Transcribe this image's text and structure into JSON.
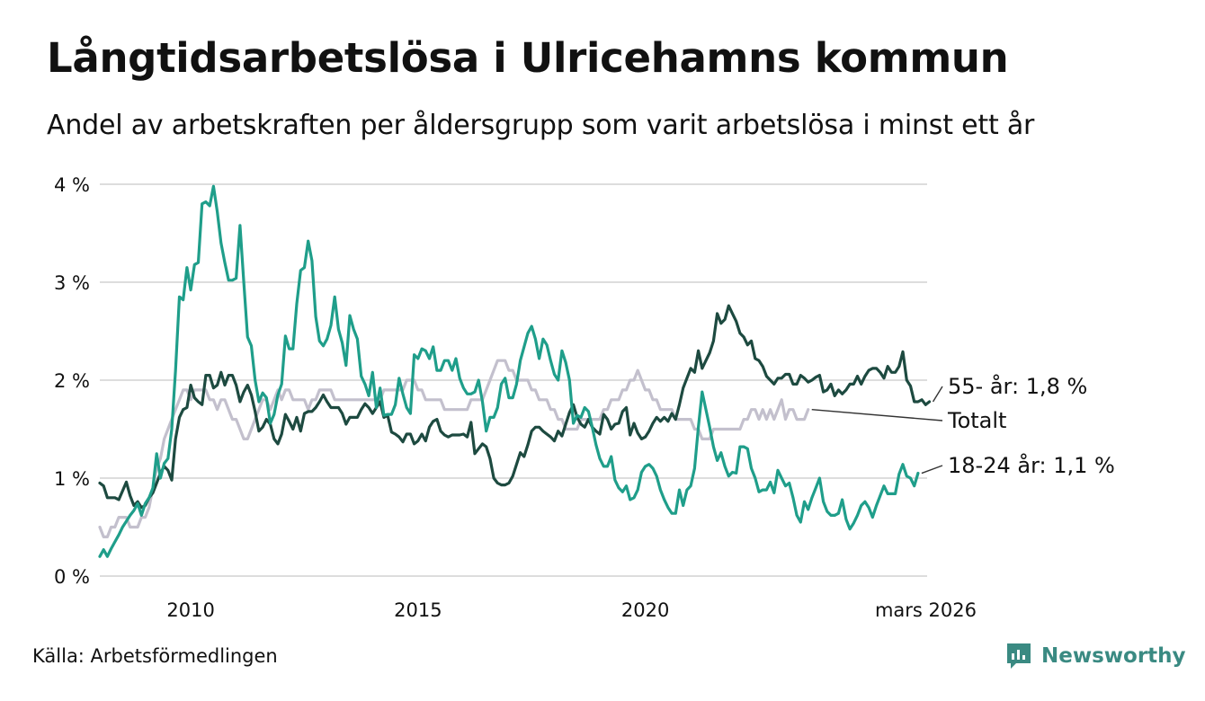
{
  "header": {
    "title": "Långtidsarbetslösa i Ulricehamns kommun",
    "subtitle": "Andel av arbetskraften per åldersgrupp som varit arbetslösa i minst ett år"
  },
  "footer": {
    "source": "Källa: Arbetsförmedlingen",
    "brand": "Newsworthy"
  },
  "colors": {
    "young": "#1f9e8a",
    "old": "#1d4a40",
    "total": "#c3c0cd",
    "grid": "#dddddd",
    "brand": "#3a8a82"
  },
  "chart_data": {
    "type": "line",
    "title": "Långtidsarbetslösa i Ulricehamns kommun",
    "xlabel": "",
    "ylabel": "",
    "x_start": 2008.0,
    "x_step": 0.0833333,
    "xlim": [
      2008.0,
      2026.2
    ],
    "ylim": [
      0,
      4
    ],
    "y_ticks": [
      0,
      1,
      2,
      3,
      4
    ],
    "y_tick_labels": [
      "0 %",
      "1 %",
      "2 %",
      "3 %",
      "4 %"
    ],
    "x_ticks": [
      2010,
      2015,
      2020,
      2026.17
    ],
    "x_tick_labels": [
      "2010",
      "2015",
      "2020",
      "mars 2026"
    ],
    "grid": true,
    "series": [
      {
        "name": "Totalt",
        "key": "total",
        "end_label": "Totalt",
        "values": [
          0.5,
          0.4,
          0.4,
          0.5,
          0.5,
          0.6,
          0.6,
          0.6,
          0.5,
          0.5,
          0.5,
          0.6,
          0.6,
          0.7,
          0.9,
          1.1,
          1.2,
          1.4,
          1.5,
          1.6,
          1.7,
          1.8,
          1.9,
          1.9,
          1.8,
          1.9,
          1.9,
          1.9,
          1.9,
          1.8,
          1.8,
          1.7,
          1.8,
          1.8,
          1.7,
          1.6,
          1.6,
          1.5,
          1.4,
          1.4,
          1.5,
          1.6,
          1.7,
          1.8,
          1.8,
          1.7,
          1.8,
          1.9,
          1.8,
          1.9,
          1.9,
          1.8,
          1.8,
          1.8,
          1.8,
          1.7,
          1.8,
          1.8,
          1.9,
          1.9,
          1.9,
          1.9,
          1.8,
          1.8,
          1.8,
          1.8,
          1.8,
          1.8,
          1.8,
          1.8,
          1.8,
          1.8,
          1.8,
          1.8,
          1.8,
          1.9,
          1.9,
          1.9,
          1.9,
          1.9,
          1.9,
          2.0,
          2.0,
          2.0,
          1.9,
          1.9,
          1.8,
          1.8,
          1.8,
          1.8,
          1.8,
          1.7,
          1.7,
          1.7,
          1.7,
          1.7,
          1.7,
          1.7,
          1.8,
          1.8,
          1.8,
          1.8,
          1.9,
          2.0,
          2.1,
          2.2,
          2.2,
          2.2,
          2.1,
          2.1,
          2.0,
          2.0,
          2.0,
          2.0,
          1.9,
          1.9,
          1.8,
          1.8,
          1.8,
          1.7,
          1.7,
          1.6,
          1.6,
          1.5,
          1.5,
          1.5,
          1.5,
          1.6,
          1.6,
          1.6,
          1.6,
          1.6,
          1.6,
          1.7,
          1.7,
          1.8,
          1.8,
          1.8,
          1.9,
          1.9,
          2.0,
          2.0,
          2.1,
          2.0,
          1.9,
          1.9,
          1.8,
          1.8,
          1.7,
          1.7,
          1.7,
          1.7,
          1.6,
          1.6,
          1.6,
          1.6,
          1.6,
          1.5,
          1.5,
          1.4,
          1.4,
          1.4,
          1.5,
          1.5,
          1.5,
          1.5,
          1.5,
          1.5,
          1.5,
          1.5,
          1.6,
          1.6,
          1.7,
          1.7,
          1.6,
          1.7,
          1.6,
          1.7,
          1.6,
          1.7,
          1.8,
          1.6,
          1.7,
          1.7,
          1.6,
          1.6,
          1.6,
          1.7
        ]
      },
      {
        "name": "55- år",
        "key": "old",
        "end_label": "55- år: 1,8 %",
        "values": [
          0.95,
          0.92,
          0.8,
          0.8,
          0.8,
          0.78,
          0.87,
          0.96,
          0.82,
          0.72,
          0.76,
          0.7,
          0.72,
          0.8,
          0.85,
          0.95,
          1.05,
          1.12,
          1.08,
          0.98,
          1.4,
          1.62,
          1.7,
          1.72,
          1.95,
          1.82,
          1.78,
          1.75,
          2.05,
          2.05,
          1.92,
          1.95,
          2.08,
          1.95,
          2.05,
          2.05,
          1.95,
          1.78,
          1.88,
          1.95,
          1.85,
          1.68,
          1.48,
          1.52,
          1.6,
          1.55,
          1.4,
          1.35,
          1.45,
          1.65,
          1.58,
          1.5,
          1.62,
          1.48,
          1.66,
          1.68,
          1.68,
          1.72,
          1.78,
          1.85,
          1.78,
          1.72,
          1.72,
          1.72,
          1.66,
          1.55,
          1.62,
          1.62,
          1.62,
          1.7,
          1.76,
          1.72,
          1.66,
          1.72,
          1.78,
          1.62,
          1.64,
          1.47,
          1.45,
          1.42,
          1.37,
          1.45,
          1.45,
          1.35,
          1.38,
          1.45,
          1.38,
          1.52,
          1.58,
          1.6,
          1.48,
          1.44,
          1.42,
          1.44,
          1.44,
          1.44,
          1.45,
          1.42,
          1.57,
          1.25,
          1.3,
          1.35,
          1.32,
          1.2,
          1.0,
          0.95,
          0.93,
          0.93,
          0.95,
          1.02,
          1.14,
          1.26,
          1.22,
          1.34,
          1.48,
          1.52,
          1.52,
          1.48,
          1.45,
          1.42,
          1.38,
          1.48,
          1.43,
          1.55,
          1.67,
          1.75,
          1.62,
          1.55,
          1.52,
          1.6,
          1.52,
          1.48,
          1.45,
          1.65,
          1.6,
          1.5,
          1.55,
          1.56,
          1.68,
          1.72,
          1.44,
          1.56,
          1.46,
          1.4,
          1.42,
          1.48,
          1.56,
          1.62,
          1.58,
          1.62,
          1.58,
          1.66,
          1.6,
          1.75,
          1.92,
          2.02,
          2.12,
          2.08,
          2.3,
          2.12,
          2.2,
          2.28,
          2.4,
          2.68,
          2.58,
          2.62,
          2.76,
          2.68,
          2.6,
          2.48,
          2.44,
          2.36,
          2.4,
          2.22,
          2.2,
          2.14,
          2.04,
          2.0,
          1.96,
          2.02,
          2.02,
          2.06,
          2.06,
          1.96,
          1.96,
          2.05,
          2.02,
          1.98,
          2.0,
          2.03,
          2.05,
          1.88,
          1.9,
          1.96,
          1.84,
          1.9,
          1.86,
          1.9,
          1.96,
          1.96,
          2.04,
          1.96,
          2.04,
          2.1,
          2.12,
          2.12,
          2.08,
          2.02,
          2.14,
          2.08,
          2.08,
          2.14,
          2.29,
          2.0,
          1.94,
          1.78,
          1.78,
          1.8,
          1.75,
          1.78
        ]
      },
      {
        "name": "18-24 år",
        "key": "young",
        "end_label": "18-24 år: 1,1 %",
        "values": [
          0.2,
          0.27,
          0.2,
          0.28,
          0.35,
          0.42,
          0.5,
          0.56,
          0.62,
          0.67,
          0.74,
          0.62,
          0.74,
          0.8,
          0.9,
          1.25,
          1.0,
          1.15,
          1.2,
          1.5,
          2.1,
          2.85,
          2.82,
          3.15,
          2.92,
          3.18,
          3.2,
          3.8,
          3.82,
          3.78,
          3.98,
          3.72,
          3.4,
          3.2,
          3.02,
          3.02,
          3.04,
          3.58,
          3.0,
          2.44,
          2.35,
          2.0,
          1.78,
          1.87,
          1.82,
          1.56,
          1.65,
          1.85,
          1.96,
          2.45,
          2.32,
          2.32,
          2.78,
          3.12,
          3.15,
          3.42,
          3.22,
          2.65,
          2.4,
          2.35,
          2.42,
          2.56,
          2.85,
          2.52,
          2.38,
          2.15,
          2.66,
          2.52,
          2.42,
          2.04,
          1.96,
          1.84,
          2.08,
          1.72,
          1.92,
          1.64,
          1.65,
          1.65,
          1.75,
          2.02,
          1.86,
          1.72,
          1.66,
          2.26,
          2.22,
          2.32,
          2.3,
          2.22,
          2.34,
          2.1,
          2.1,
          2.2,
          2.2,
          2.1,
          2.22,
          2.02,
          1.92,
          1.86,
          1.86,
          1.88,
          2.0,
          1.78,
          1.48,
          1.62,
          1.62,
          1.72,
          1.96,
          2.02,
          1.82,
          1.82,
          1.96,
          2.2,
          2.34,
          2.48,
          2.55,
          2.42,
          2.22,
          2.42,
          2.36,
          2.2,
          2.06,
          2.0,
          2.3,
          2.18,
          2.0,
          1.56,
          1.64,
          1.62,
          1.72,
          1.68,
          1.52,
          1.34,
          1.2,
          1.12,
          1.12,
          1.22,
          0.98,
          0.9,
          0.86,
          0.92,
          0.78,
          0.8,
          0.88,
          1.06,
          1.12,
          1.14,
          1.1,
          1.02,
          0.88,
          0.78,
          0.7,
          0.64,
          0.64,
          0.88,
          0.72,
          0.88,
          0.92,
          1.1,
          1.52,
          1.88,
          1.7,
          1.52,
          1.32,
          1.18,
          1.26,
          1.12,
          1.02,
          1.06,
          1.05,
          1.32,
          1.32,
          1.3,
          1.1,
          1.0,
          0.86,
          0.88,
          0.88,
          0.96,
          0.85,
          1.08,
          1.0,
          0.92,
          0.95,
          0.8,
          0.62,
          0.55,
          0.76,
          0.68,
          0.8,
          0.9,
          1.0,
          0.76,
          0.66,
          0.62,
          0.62,
          0.64,
          0.78,
          0.58,
          0.48,
          0.54,
          0.62,
          0.72,
          0.76,
          0.7,
          0.6,
          0.72,
          0.82,
          0.92,
          0.84,
          0.84,
          0.84,
          1.04,
          1.14,
          1.02,
          1.0,
          0.92,
          1.05
        ]
      }
    ]
  }
}
